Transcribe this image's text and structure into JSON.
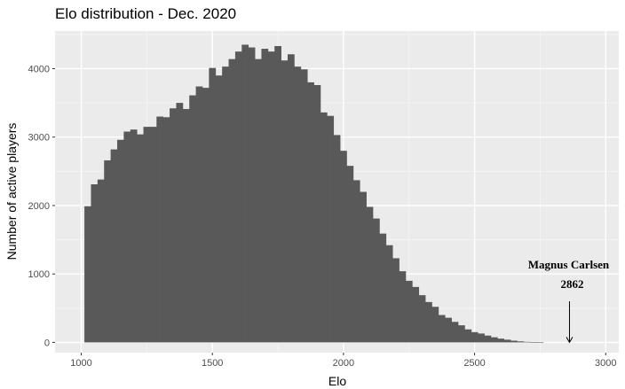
{
  "chart_data": {
    "type": "bar",
    "title": "Elo distribution - Dec. 2020",
    "xlabel": "Elo",
    "ylabel": "Number of active players",
    "xlim": [
      900,
      3050
    ],
    "ylim": [
      -150,
      4550
    ],
    "x_ticks": [
      "1000",
      "1500",
      "2000",
      "2500",
      "3000"
    ],
    "y_ticks": [
      "0",
      "1000",
      "2000",
      "3000",
      "4000"
    ],
    "bin_start": 1012,
    "bin_width": 25,
    "values": [
      1990,
      2310,
      2380,
      2660,
      2820,
      2960,
      3080,
      3110,
      3040,
      3150,
      3150,
      3300,
      3290,
      3420,
      3500,
      3410,
      3610,
      3740,
      3720,
      4010,
      3900,
      4030,
      4140,
      4250,
      4350,
      4310,
      4140,
      4290,
      4250,
      4330,
      4120,
      4210,
      4030,
      3990,
      3800,
      3760,
      3360,
      3310,
      3030,
      2800,
      2580,
      2370,
      2200,
      1980,
      1810,
      1590,
      1420,
      1230,
      1040,
      900,
      810,
      690,
      590,
      520,
      400,
      360,
      300,
      250,
      190,
      150,
      130,
      100,
      75,
      55,
      40,
      25,
      15,
      8,
      3,
      0
    ],
    "grid": true,
    "annotation": {
      "name": "Magnus Carlsen",
      "value": "2862",
      "x": 2862,
      "arrow_from_y": 600,
      "arrow_to_y": 0
    },
    "colors": {
      "bar": "#595959",
      "panel": "#ebebeb",
      "grid_major": "#ffffff",
      "grid_minor": "#f5f5f5"
    }
  }
}
